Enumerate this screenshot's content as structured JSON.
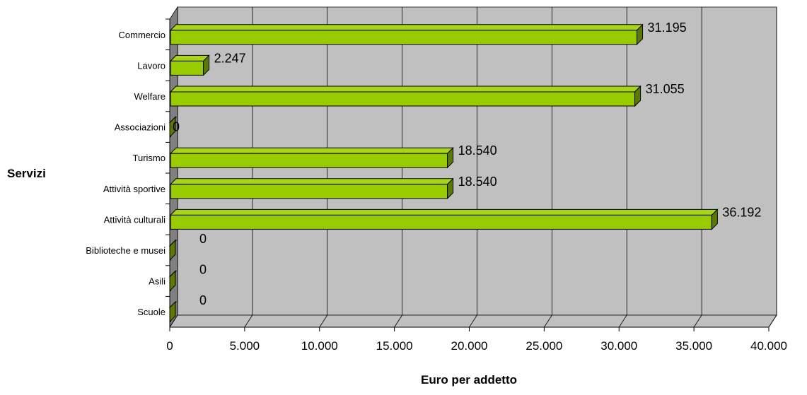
{
  "chart_data": {
    "type": "bar",
    "orientation": "horizontal",
    "style": "3d",
    "categories": [
      "Commercio",
      "Lavoro",
      "Welfare",
      "Associazioni",
      "Turismo",
      "Attività sportive",
      "Attività culturali",
      "Biblioteche e musei",
      "Asili",
      "Scuole"
    ],
    "values": [
      31195,
      2247,
      31055,
      0,
      18540,
      18540,
      36192,
      0,
      0,
      0
    ],
    "data_labels": [
      "31.195",
      "2.247",
      "31.055",
      "0",
      "18.540",
      "18.540",
      "36.192",
      "0",
      "0",
      "0"
    ],
    "xlabel": "Euro per addetto",
    "ylabel": "Servizi",
    "xlim": [
      0,
      40000
    ],
    "x_ticks": [
      0,
      5000,
      10000,
      15000,
      20000,
      25000,
      30000,
      35000,
      40000
    ],
    "x_tick_labels": [
      "0",
      "5.000",
      "10.000",
      "15.000",
      "20.000",
      "25.000",
      "30.000",
      "35.000",
      "40.000"
    ],
    "grid": "vertical",
    "legend": "none",
    "colors": {
      "bar_front": "#99cc00",
      "bar_top": "#a8d41a",
      "bar_side": "#5c7a00",
      "bar_outline": "#000000",
      "plot_wall": "#c0c0c0",
      "side_wall": "#808080",
      "floor": "#c0c0c0",
      "grid": "#000000"
    }
  }
}
